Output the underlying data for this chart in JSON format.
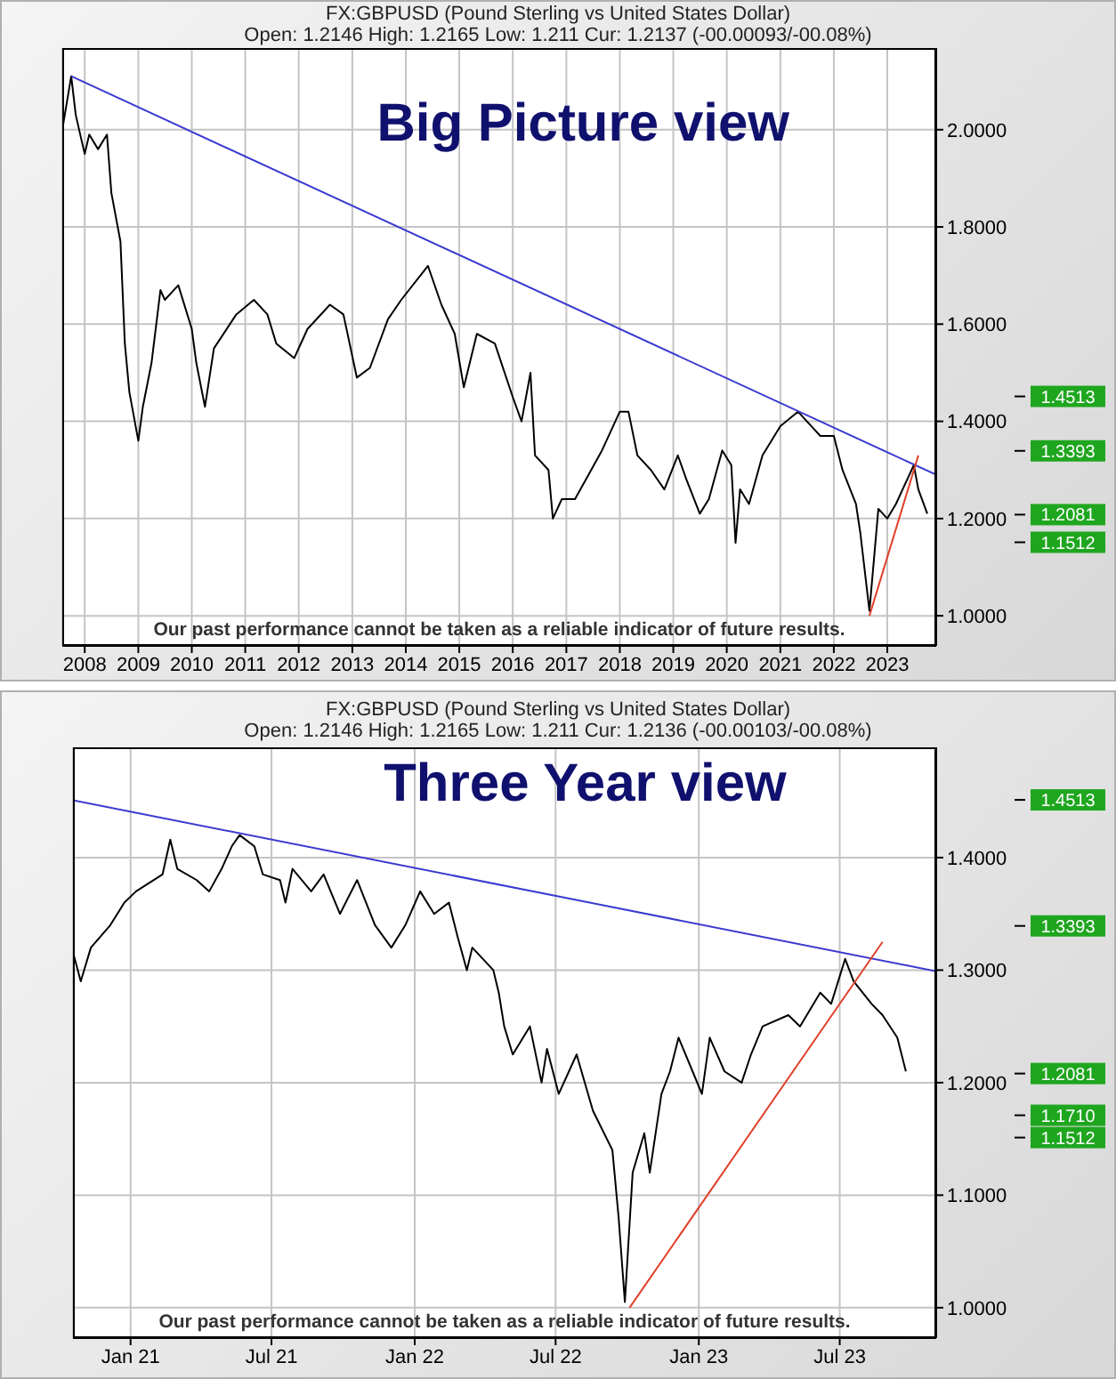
{
  "chart_data": [
    {
      "type": "line",
      "title": "FX:GBPUSD (Pound Sterling vs United States Dollar)",
      "subtitle": "Open: 1.2146 High: 1.2165 Low: 1.211 Cur: 1.2137 (-00.00093/-00.08%)",
      "annotations": [
        "Big Picture view",
        "Our past performance cannot be taken as a reliable indicator of future results."
      ],
      "series": [
        {
          "color": "#000000",
          "x": [
            "2007-08",
            "2007-10",
            "2007-11",
            "2008-01",
            "2008-02",
            "2008-04",
            "2008-06",
            "2008-07",
            "2008-09",
            "2008-10",
            "2008-11",
            "2009-01",
            "2009-02",
            "2009-04",
            "2009-06",
            "2009-07",
            "2009-10",
            "2010-01",
            "2010-02",
            "2010-04",
            "2010-06",
            "2010-11",
            "2011-03",
            "2011-06",
            "2011-08",
            "2011-12",
            "2012-03",
            "2012-08",
            "2012-11",
            "2013-02",
            "2013-05",
            "2013-09",
            "2013-12",
            "2014-06",
            "2014-09",
            "2014-12",
            "2015-02",
            "2015-05",
            "2015-09",
            "2016-01",
            "2016-03",
            "2016-05",
            "2016-06",
            "2016-09",
            "2016-10",
            "2016-12",
            "2017-03",
            "2017-06",
            "2017-09",
            "2018-01",
            "2018-03",
            "2018-05",
            "2018-08",
            "2018-11",
            "2019-02",
            "2019-04",
            "2019-07",
            "2019-09",
            "2019-12",
            "2020-02",
            "2020-03",
            "2020-04",
            "2020-06",
            "2020-09",
            "2021-01",
            "2021-05",
            "2021-08",
            "2021-10",
            "2022-01",
            "2022-03",
            "2022-06",
            "2022-07",
            "2022-09",
            "2022-11",
            "2023-01",
            "2023-03",
            "2023-07",
            "2023-08",
            "2023-10"
          ],
          "values": [
            2.0,
            2.11,
            2.03,
            1.95,
            1.99,
            1.96,
            1.99,
            1.87,
            1.77,
            1.56,
            1.46,
            1.36,
            1.43,
            1.52,
            1.67,
            1.65,
            1.68,
            1.59,
            1.52,
            1.43,
            1.55,
            1.62,
            1.65,
            1.62,
            1.56,
            1.53,
            1.59,
            1.64,
            1.62,
            1.49,
            1.51,
            1.61,
            1.65,
            1.72,
            1.64,
            1.58,
            1.47,
            1.58,
            1.56,
            1.45,
            1.4,
            1.5,
            1.33,
            1.3,
            1.2,
            1.24,
            1.24,
            1.29,
            1.34,
            1.42,
            1.42,
            1.33,
            1.3,
            1.26,
            1.33,
            1.28,
            1.21,
            1.24,
            1.34,
            1.31,
            1.15,
            1.26,
            1.23,
            1.33,
            1.39,
            1.42,
            1.39,
            1.37,
            1.37,
            1.3,
            1.23,
            1.17,
            1.01,
            1.22,
            1.2,
            1.23,
            1.31,
            1.26,
            1.21
          ]
        },
        {
          "color": "#3a3ad0",
          "x": [
            "2007-10",
            "2023-12"
          ],
          "values": [
            2.11,
            1.29
          ]
        },
        {
          "color": "#e0402a",
          "x": [
            "2022-09",
            "2023-08"
          ],
          "values": [
            1.0,
            1.33
          ]
        }
      ],
      "xlim": [
        "2007-08",
        "2023-12"
      ],
      "xticks": [
        {
          "value": "2008",
          "label": "2008"
        },
        {
          "value": "2009",
          "label": "2009"
        },
        {
          "value": "2010",
          "label": "2010"
        },
        {
          "value": "2011",
          "label": "2011"
        },
        {
          "value": "2012",
          "label": "2012"
        },
        {
          "value": "2013",
          "label": "2013"
        },
        {
          "value": "2014",
          "label": "2014"
        },
        {
          "value": "2015",
          "label": "2015"
        },
        {
          "value": "2016",
          "label": "2016"
        },
        {
          "value": "2017",
          "label": "2017"
        },
        {
          "value": "2018",
          "label": "2018"
        },
        {
          "value": "2019",
          "label": "2019"
        },
        {
          "value": "2020",
          "label": "2020"
        },
        {
          "value": "2021",
          "label": "2021"
        },
        {
          "value": "2022",
          "label": "2022"
        },
        {
          "value": "2023",
          "label": "2023"
        }
      ],
      "ylim": [
        0.938,
        2.168
      ],
      "yticks": [
        {
          "value": 1.0,
          "label": "1.0000"
        },
        {
          "value": 1.2,
          "label": "1.2000"
        },
        {
          "value": 1.4,
          "label": "1.4000"
        },
        {
          "value": 1.6,
          "label": "1.6000"
        },
        {
          "value": 1.8,
          "label": "1.8000"
        },
        {
          "value": 2.0,
          "label": "2.0000"
        }
      ],
      "y2lim": [
        0.938,
        2.168
      ],
      "y2ticks": [
        {
          "value": 1.4513,
          "label": "1.4513"
        },
        {
          "value": 1.3393,
          "label": "1.3393"
        },
        {
          "value": 1.2081,
          "label": "1.2081"
        },
        {
          "value": 1.1512,
          "label": "1.1512"
        }
      ],
      "grid": true
    },
    {
      "type": "line",
      "title": "FX:GBPUSD (Pound Sterling vs United States Dollar)",
      "subtitle": "Open: 1.2146 High: 1.2165 Low: 1.211 Cur: 1.2136 (-00.00103/-00.08%)",
      "annotations": [
        "Three Year view",
        "Our past performance cannot be taken as a reliable indicator of future results."
      ],
      "series": [
        {
          "color": "#000000",
          "x": [
            "2020-10-19",
            "2020-10-29",
            "2020-11-11",
            "2020-12-06",
            "2020-12-24",
            "2021-01-08",
            "2021-02-11",
            "2021-02-21",
            "2021-03-02",
            "2021-03-27",
            "2021-04-12",
            "2021-04-28",
            "2021-05-11",
            "2021-05-21",
            "2021-06-09",
            "2021-06-20",
            "2021-07-12",
            "2021-07-19",
            "2021-07-28",
            "2021-08-21",
            "2021-09-06",
            "2021-09-27",
            "2021-10-19",
            "2021-11-11",
            "2021-12-02",
            "2021-12-20",
            "2022-01-08",
            "2022-01-26",
            "2022-02-14",
            "2022-02-25",
            "2022-03-09",
            "2022-03-16",
            "2022-04-12",
            "2022-04-19",
            "2022-04-26",
            "2022-05-07",
            "2022-05-29",
            "2022-06-13",
            "2022-06-20",
            "2022-07-05",
            "2022-07-28",
            "2022-08-18",
            "2022-09-12",
            "2022-09-20",
            "2022-09-28",
            "2022-10-08",
            "2022-10-23",
            "2022-10-30",
            "2022-11-14",
            "2022-11-25",
            "2022-12-06",
            "2022-12-24",
            "2023-01-05",
            "2023-01-15",
            "2023-02-03",
            "2023-02-25",
            "2023-03-09",
            "2023-03-24",
            "2023-04-26",
            "2023-05-11",
            "2023-06-06",
            "2023-06-20",
            "2023-07-08",
            "2023-07-19",
            "2023-08-11",
            "2023-08-25",
            "2023-09-13",
            "2023-09-24"
          ],
          "values": [
            1.316,
            1.29,
            1.32,
            1.34,
            1.36,
            1.37,
            1.385,
            1.416,
            1.39,
            1.38,
            1.37,
            1.39,
            1.41,
            1.42,
            1.41,
            1.385,
            1.38,
            1.36,
            1.39,
            1.37,
            1.385,
            1.35,
            1.38,
            1.34,
            1.32,
            1.34,
            1.37,
            1.35,
            1.36,
            1.33,
            1.3,
            1.32,
            1.3,
            1.28,
            1.25,
            1.225,
            1.25,
            1.2,
            1.23,
            1.19,
            1.225,
            1.175,
            1.14,
            1.08,
            1.005,
            1.12,
            1.155,
            1.12,
            1.19,
            1.21,
            1.24,
            1.21,
            1.19,
            1.24,
            1.21,
            1.2,
            1.225,
            1.25,
            1.26,
            1.25,
            1.28,
            1.27,
            1.31,
            1.29,
            1.27,
            1.26,
            1.24,
            1.21
          ]
        },
        {
          "color": "#3a3ad0",
          "x": [
            "2020-10-19",
            "2023-11-02"
          ],
          "values": [
            1.451,
            1.299
          ]
        },
        {
          "color": "#e0402a",
          "x": [
            "2022-10-04",
            "2023-08-25"
          ],
          "values": [
            1.0,
            1.325
          ]
        }
      ],
      "xlim": [
        "2020-10-19",
        "2023-11-02"
      ],
      "xticks": [
        {
          "value": "2021-01",
          "label": "Jan 21"
        },
        {
          "value": "2021-07",
          "label": "Jul 21"
        },
        {
          "value": "2022-01",
          "label": "Jan 22"
        },
        {
          "value": "2022-07",
          "label": "Jul 22"
        },
        {
          "value": "2023-01",
          "label": "Jan 23"
        },
        {
          "value": "2023-07",
          "label": "Jul 23"
        }
      ],
      "ylim": [
        0.973,
        1.498
      ],
      "yticks": [
        {
          "value": 1.0,
          "label": "1.0000"
        },
        {
          "value": 1.1,
          "label": "1.1000"
        },
        {
          "value": 1.2,
          "label": "1.2000"
        },
        {
          "value": 1.3,
          "label": "1.3000"
        },
        {
          "value": 1.4,
          "label": "1.4000"
        }
      ],
      "y2lim": [
        0.973,
        1.498
      ],
      "y2ticks": [
        {
          "value": 1.4513,
          "label": "1.4513"
        },
        {
          "value": 1.3393,
          "label": "1.3393"
        },
        {
          "value": 1.2081,
          "label": "1.2081"
        },
        {
          "value": 1.171,
          "label": "1.1710"
        },
        {
          "value": 1.1512,
          "label": "1.1512"
        }
      ],
      "grid": true
    }
  ]
}
